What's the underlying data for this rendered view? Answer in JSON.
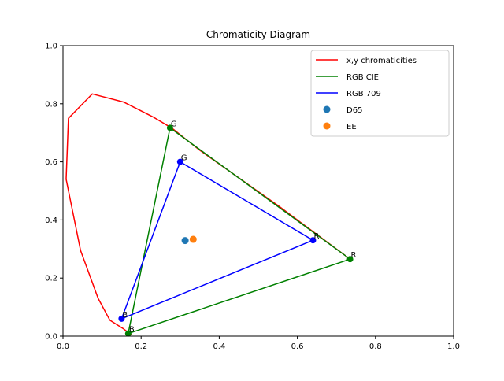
{
  "chart_data": {
    "type": "line",
    "title": "Chromaticity Diagram",
    "xlabel": "",
    "ylabel": "",
    "xlim": [
      0.0,
      1.0
    ],
    "ylim": [
      0.0,
      1.0
    ],
    "xticks": [
      "0.0",
      "0.2",
      "0.4",
      "0.6",
      "0.8",
      "1.0"
    ],
    "yticks": [
      "0.0",
      "0.2",
      "0.4",
      "0.6",
      "0.8",
      "1.0"
    ],
    "grid": false,
    "legend_position": "top-right",
    "series": [
      {
        "name": "x,y chromaticities",
        "kind": "line",
        "color": "#ff0000",
        "points": [
          [
            0.175,
            0.005
          ],
          [
            0.168,
            0.012
          ],
          [
            0.155,
            0.025
          ],
          [
            0.12,
            0.055
          ],
          [
            0.09,
            0.13
          ],
          [
            0.045,
            0.295
          ],
          [
            0.008,
            0.54
          ],
          [
            0.014,
            0.75
          ],
          [
            0.075,
            0.834
          ],
          [
            0.155,
            0.806
          ],
          [
            0.23,
            0.755
          ],
          [
            0.28,
            0.715
          ],
          [
            0.35,
            0.64
          ],
          [
            0.45,
            0.545
          ],
          [
            0.55,
            0.45
          ],
          [
            0.65,
            0.35
          ],
          [
            0.735,
            0.265
          ]
        ]
      },
      {
        "name": "RGB CIE",
        "kind": "triangle",
        "color": "#008000",
        "points": [
          [
            0.735,
            0.265
          ],
          [
            0.274,
            0.717
          ],
          [
            0.167,
            0.009
          ],
          [
            0.735,
            0.265
          ]
        ],
        "vertex_labels": [
          "R",
          "G",
          "B"
        ]
      },
      {
        "name": "RGB 709",
        "kind": "triangle",
        "color": "#0000ff",
        "points": [
          [
            0.64,
            0.33
          ],
          [
            0.3,
            0.6
          ],
          [
            0.15,
            0.06
          ],
          [
            0.64,
            0.33
          ]
        ],
        "vertex_labels": [
          "R",
          "G",
          "B"
        ]
      },
      {
        "name": "D65",
        "kind": "scatter",
        "color": "#1f77b4",
        "points": [
          [
            0.3127,
            0.329
          ]
        ]
      },
      {
        "name": "EE",
        "kind": "scatter",
        "color": "#ff7f0e",
        "points": [
          [
            0.3333,
            0.3333
          ]
        ]
      }
    ]
  }
}
